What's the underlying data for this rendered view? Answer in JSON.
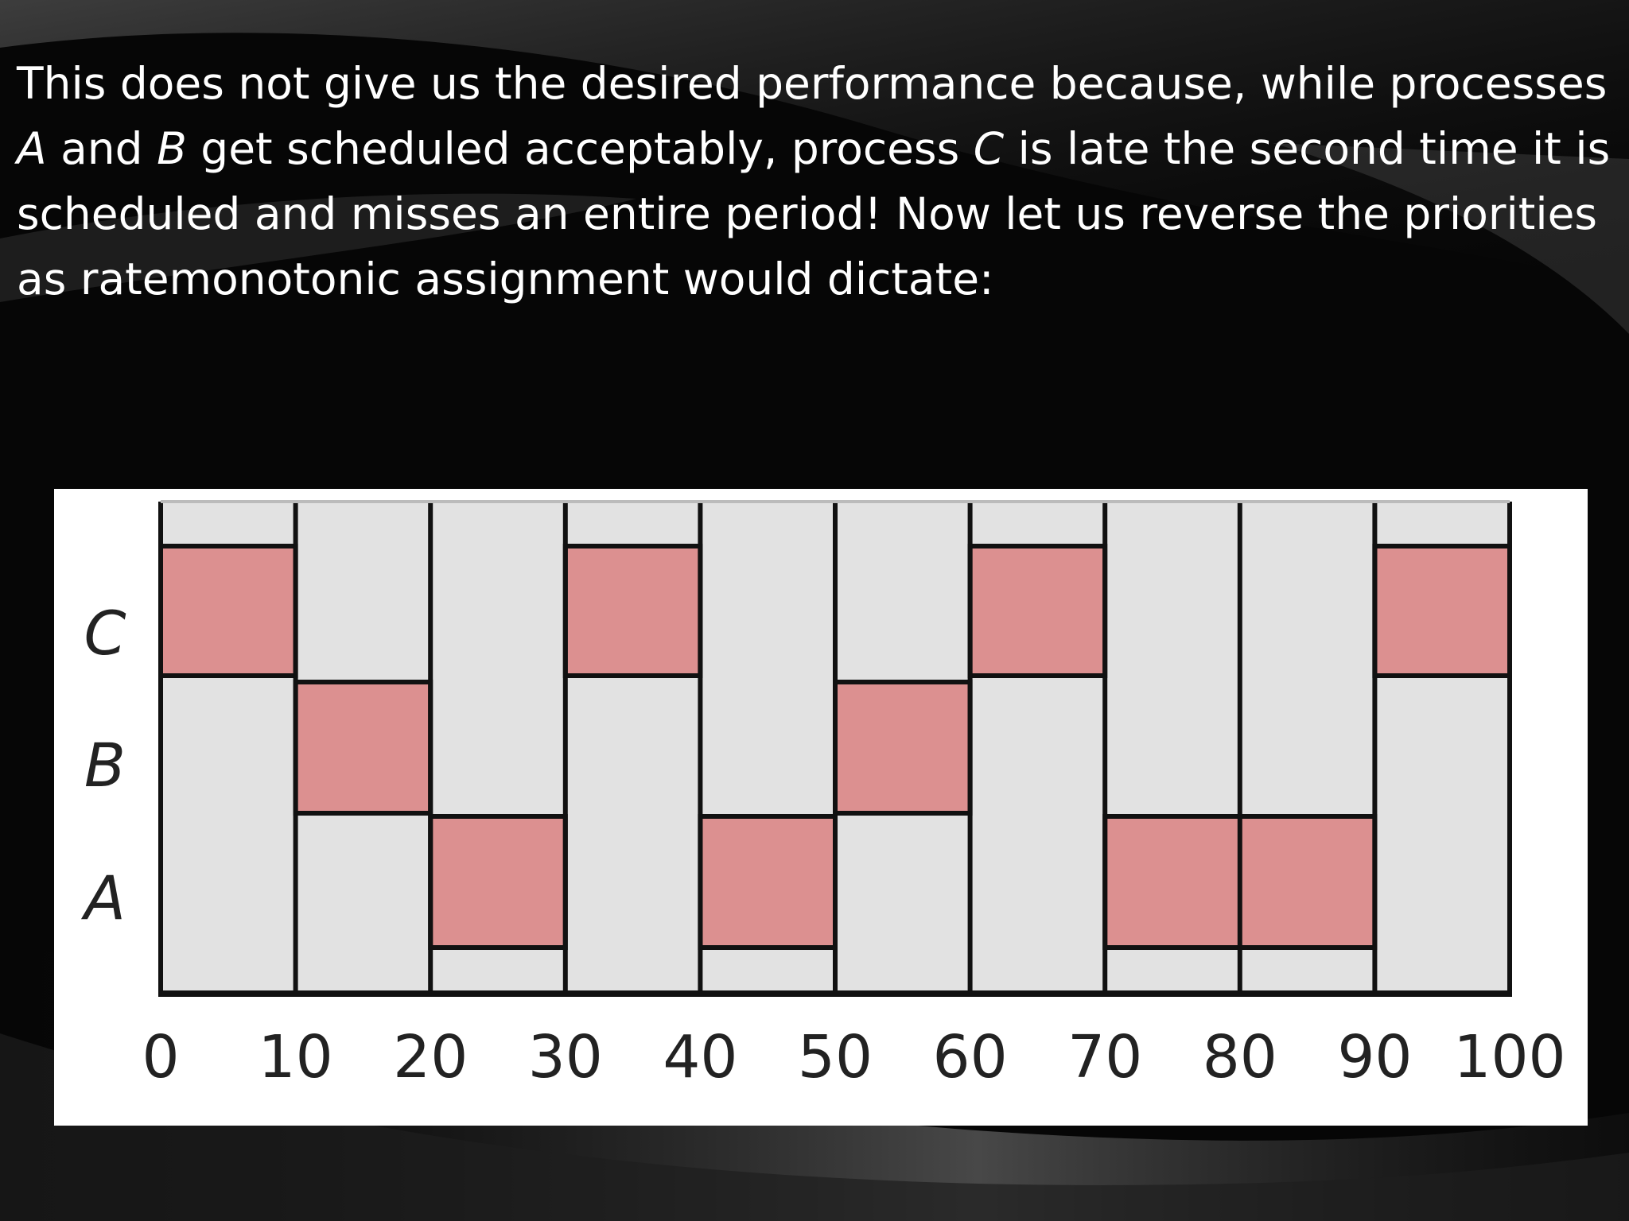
{
  "caption": {
    "l1": "This does not give us the desired performance because, while processes",
    "l2a": "A",
    "l2b": " and ",
    "l2c": "B",
    "l2d": " get scheduled acceptably, process ",
    "l2e": "C",
    "l2f": " is late the second time it is",
    "l3": "scheduled and misses an entire period! Now let us reverse the priorities",
    "l4": "as ratemonotonic assignment would dictate:"
  },
  "diagram": {
    "rows": [
      "C",
      "B",
      "A"
    ],
    "ticks": [
      "0",
      "10",
      "20",
      "30",
      "40",
      "50",
      "60",
      "70",
      "80",
      "90",
      "100"
    ],
    "x_range": [
      0,
      100
    ],
    "period_boundaries": {
      "C": [
        0,
        10,
        30,
        40,
        60,
        70,
        90,
        100
      ],
      "B": [
        0,
        10,
        20,
        50,
        60,
        100
      ],
      "A": [
        0,
        10,
        20,
        30,
        40,
        50,
        60,
        70,
        80,
        90,
        100
      ]
    },
    "execution_blocks": [
      {
        "process": "C",
        "start": 0,
        "end": 10
      },
      {
        "process": "B",
        "start": 10,
        "end": 20
      },
      {
        "process": "A",
        "start": 20,
        "end": 30
      },
      {
        "process": "C",
        "start": 30,
        "end": 40
      },
      {
        "process": "A",
        "start": 40,
        "end": 50
      },
      {
        "process": "B",
        "start": 50,
        "end": 60
      },
      {
        "process": "C",
        "start": 60,
        "end": 70
      },
      {
        "process": "A",
        "start": 70,
        "end": 90
      },
      {
        "process": "C",
        "start": 90,
        "end": 100
      }
    ],
    "colors": {
      "panel": "#ffffff",
      "track": "#e2e2e2",
      "block": "#dc9090",
      "stroke": "#111111",
      "text": "#222222"
    }
  }
}
